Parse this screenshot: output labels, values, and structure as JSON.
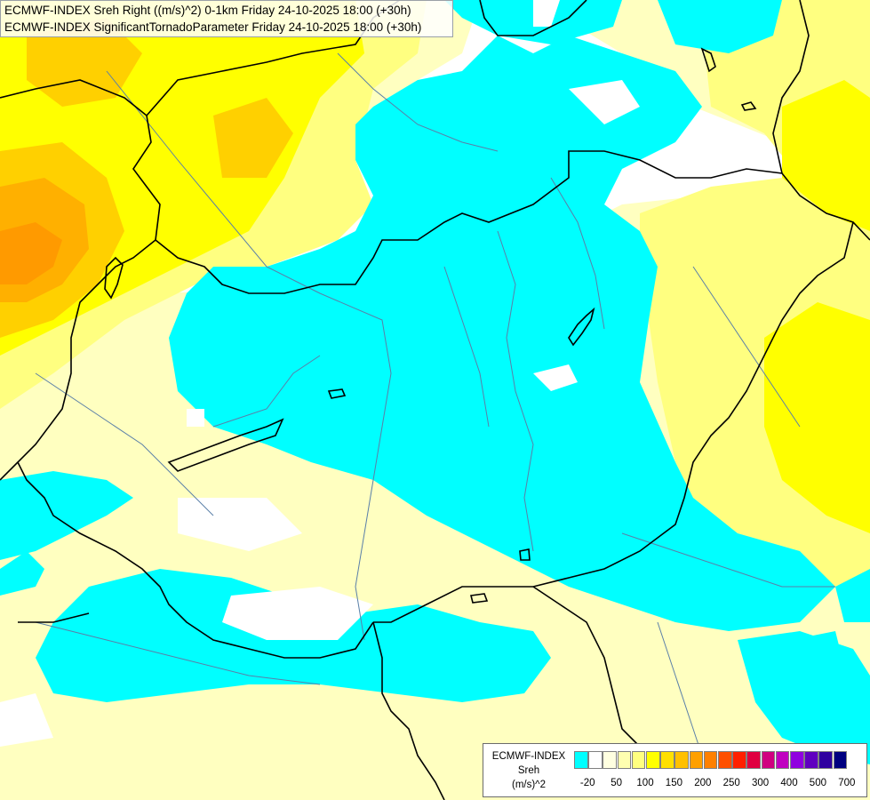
{
  "title": {
    "line1": "ECMWF-INDEX Sreh Right ((m/s)^2) 0-1km Friday 24-10-2025 18:00 (+30h)",
    "line2": "ECMWF-INDEX SignificantTornadoParameter Friday 24-10-2025 18:00 (+30h)"
  },
  "legend": {
    "model": "ECMWF-INDEX",
    "variable": "Sreh",
    "unit": "(m/s)^2",
    "colors": [
      "#00ffff",
      "#ffffff",
      "#ffffe0",
      "#ffffb0",
      "#ffff80",
      "#ffff00",
      "#ffe000",
      "#ffc000",
      "#ffa000",
      "#ff8000",
      "#ff5000",
      "#ff2000",
      "#e00040",
      "#d00080",
      "#c000c0",
      "#9000e0",
      "#6000c0",
      "#3000a0",
      "#000080"
    ],
    "ticks": [
      "-20",
      "50",
      "100",
      "150",
      "200",
      "250",
      "300",
      "400",
      "500",
      "700"
    ]
  },
  "colors": {
    "cyan": "#00ffff",
    "pale_yellow": "#ffffc0",
    "light_yellow": "#ffff80",
    "yellow": "#ffff00",
    "gold": "#ffd000",
    "orange": "#ffb000",
    "dark_orange": "#ff9000",
    "border": "#000000",
    "river": "#5a7fa8"
  }
}
